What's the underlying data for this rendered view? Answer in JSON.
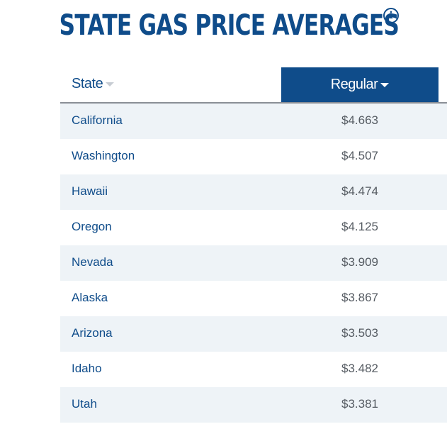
{
  "title": "STATE GAS PRICE AVERAGES",
  "info_icon": "info-icon",
  "columns": {
    "state": "State",
    "regular": "Regular"
  },
  "colors": {
    "brand_blue": "#0f4c8a",
    "row_alt": "#eef3f7",
    "price_text": "#555b62"
  },
  "rows": [
    {
      "state": "California",
      "price": "$4.663"
    },
    {
      "state": "Washington",
      "price": "$4.507"
    },
    {
      "state": "Hawaii",
      "price": "$4.474"
    },
    {
      "state": "Oregon",
      "price": "$4.125"
    },
    {
      "state": "Nevada",
      "price": "$3.909"
    },
    {
      "state": "Alaska",
      "price": "$3.867"
    },
    {
      "state": "Arizona",
      "price": "$3.503"
    },
    {
      "state": "Idaho",
      "price": "$3.482"
    },
    {
      "state": "Utah",
      "price": "$3.381"
    }
  ]
}
